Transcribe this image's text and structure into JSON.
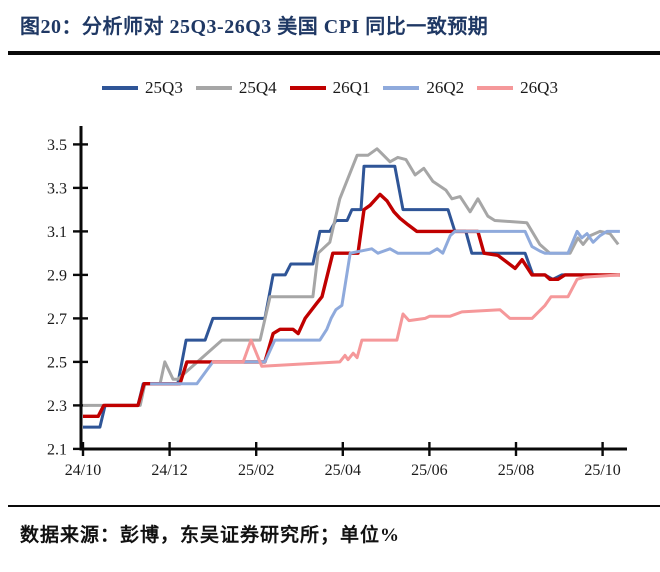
{
  "title": "图20：分析师对 25Q3-26Q3 美国 CPI 同比一致预期",
  "source_note": "数据来源：彭博，东吴证券研究所；单位%",
  "colors": {
    "title_navy": "#1f3864",
    "rule_black": "#0a0a0a",
    "series_25Q3": "#2f5597",
    "series_25Q4": "#a6a6a6",
    "series_26Q1": "#c00000",
    "series_26Q2": "#8faadc",
    "series_26Q3": "#f5989a"
  },
  "chart_data": {
    "type": "line",
    "title": "分析师对 25Q3-26Q3 美国 CPI 同比一致预期",
    "unit": "%",
    "grid": false,
    "legend_position": "top",
    "x_axis": {
      "description": "months, weekly consensus forecast snapshots from 2024/10 to 2025/10+",
      "tick_labels": [
        "24/10",
        "24/12",
        "25/02",
        "25/04",
        "25/06",
        "25/08",
        "25/10"
      ],
      "tick_positions_months": [
        0,
        2,
        4,
        6,
        8,
        10,
        12
      ],
      "range_months": [
        0,
        12.55
      ]
    },
    "y_axis": {
      "ticks": [
        2.1,
        2.3,
        2.5,
        2.7,
        2.9,
        3.1,
        3.3,
        3.5
      ],
      "range": [
        2.1,
        3.58
      ],
      "unit": "%"
    },
    "series": [
      {
        "name": "25Q3",
        "color": "#2f5597",
        "width": 3,
        "points": [
          [
            0,
            2.2
          ],
          [
            0.39,
            2.2
          ],
          [
            0.51,
            2.3
          ],
          [
            1.27,
            2.3
          ],
          [
            1.39,
            2.4
          ],
          [
            2.19,
            2.4
          ],
          [
            2.38,
            2.6
          ],
          [
            2.82,
            2.6
          ],
          [
            3.0,
            2.7
          ],
          [
            4.2,
            2.7
          ],
          [
            4.39,
            2.9
          ],
          [
            4.67,
            2.9
          ],
          [
            4.8,
            2.95
          ],
          [
            5.31,
            2.95
          ],
          [
            5.47,
            3.1
          ],
          [
            5.7,
            3.1
          ],
          [
            5.84,
            3.15
          ],
          [
            6.1,
            3.15
          ],
          [
            6.21,
            3.2
          ],
          [
            6.42,
            3.2
          ],
          [
            6.49,
            3.4
          ],
          [
            7.2,
            3.4
          ],
          [
            7.39,
            3.2
          ],
          [
            8.43,
            3.2
          ],
          [
            8.59,
            3.1
          ],
          [
            8.84,
            3.1
          ],
          [
            8.98,
            3.0
          ],
          [
            10.21,
            3.0
          ],
          [
            10.39,
            2.9
          ],
          [
            10.67,
            2.9
          ],
          [
            10.85,
            2.88
          ],
          [
            11.06,
            2.9
          ],
          [
            11.89,
            2.9
          ]
        ]
      },
      {
        "name": "25Q4",
        "color": "#a6a6a6",
        "width": 3,
        "points": [
          [
            0,
            2.3
          ],
          [
            1.32,
            2.3
          ],
          [
            1.43,
            2.4
          ],
          [
            1.78,
            2.4
          ],
          [
            1.89,
            2.5
          ],
          [
            2.08,
            2.42
          ],
          [
            2.19,
            2.42
          ],
          [
            3.21,
            2.6
          ],
          [
            4.09,
            2.6
          ],
          [
            4.32,
            2.8
          ],
          [
            5.31,
            2.8
          ],
          [
            5.43,
            3.0
          ],
          [
            5.7,
            3.05
          ],
          [
            5.93,
            3.25
          ],
          [
            6.33,
            3.45
          ],
          [
            6.58,
            3.45
          ],
          [
            6.79,
            3.48
          ],
          [
            7.09,
            3.42
          ],
          [
            7.27,
            3.44
          ],
          [
            7.46,
            3.43
          ],
          [
            7.67,
            3.36
          ],
          [
            7.87,
            3.39
          ],
          [
            8.08,
            3.33
          ],
          [
            8.38,
            3.29
          ],
          [
            8.52,
            3.25
          ],
          [
            8.71,
            3.26
          ],
          [
            8.94,
            3.19
          ],
          [
            9.12,
            3.25
          ],
          [
            9.35,
            3.17
          ],
          [
            9.51,
            3.15
          ],
          [
            10.25,
            3.14
          ],
          [
            10.55,
            3.04
          ],
          [
            10.78,
            3.0
          ],
          [
            11.25,
            3.0
          ],
          [
            11.43,
            3.07
          ],
          [
            11.55,
            3.04
          ],
          [
            11.71,
            3.08
          ],
          [
            11.94,
            3.1
          ],
          [
            12.17,
            3.09
          ],
          [
            12.36,
            3.04
          ]
        ]
      },
      {
        "name": "26Q1",
        "color": "#c00000",
        "width": 3.4,
        "points": [
          [
            0,
            2.25
          ],
          [
            0.35,
            2.25
          ],
          [
            0.48,
            2.3
          ],
          [
            1.27,
            2.3
          ],
          [
            1.41,
            2.4
          ],
          [
            2.24,
            2.4
          ],
          [
            2.4,
            2.5
          ],
          [
            4.2,
            2.5
          ],
          [
            4.39,
            2.63
          ],
          [
            4.55,
            2.65
          ],
          [
            4.85,
            2.65
          ],
          [
            4.97,
            2.63
          ],
          [
            5.13,
            2.7
          ],
          [
            5.4,
            2.77
          ],
          [
            5.52,
            2.8
          ],
          [
            5.77,
            3.0
          ],
          [
            6.35,
            3.0
          ],
          [
            6.49,
            3.2
          ],
          [
            6.63,
            3.22
          ],
          [
            6.86,
            3.27
          ],
          [
            7.02,
            3.24
          ],
          [
            7.18,
            3.19
          ],
          [
            7.32,
            3.16
          ],
          [
            7.51,
            3.13
          ],
          [
            7.71,
            3.1
          ],
          [
            9.12,
            3.1
          ],
          [
            9.26,
            3.0
          ],
          [
            9.58,
            2.99
          ],
          [
            9.98,
            2.93
          ],
          [
            10.14,
            2.97
          ],
          [
            10.37,
            2.9
          ],
          [
            10.67,
            2.9
          ],
          [
            10.78,
            2.88
          ],
          [
            10.97,
            2.88
          ],
          [
            11.13,
            2.9
          ],
          [
            12.4,
            2.9
          ]
        ]
      },
      {
        "name": "26Q2",
        "color": "#8faadc",
        "width": 3,
        "points": [
          [
            1.55,
            2.4
          ],
          [
            2.63,
            2.4
          ],
          [
            3.0,
            2.5
          ],
          [
            4.2,
            2.5
          ],
          [
            4.43,
            2.6
          ],
          [
            5.47,
            2.6
          ],
          [
            5.63,
            2.65
          ],
          [
            5.73,
            2.7
          ],
          [
            5.84,
            2.74
          ],
          [
            5.98,
            2.76
          ],
          [
            6.17,
            3.0
          ],
          [
            6.67,
            3.02
          ],
          [
            6.81,
            3.0
          ],
          [
            7.09,
            3.02
          ],
          [
            7.27,
            3.0
          ],
          [
            8.01,
            3.0
          ],
          [
            8.18,
            3.02
          ],
          [
            8.31,
            3.0
          ],
          [
            8.48,
            3.08
          ],
          [
            8.59,
            3.1
          ],
          [
            10.21,
            3.1
          ],
          [
            10.37,
            3.03
          ],
          [
            10.55,
            3.01
          ],
          [
            10.67,
            3.0
          ],
          [
            11.2,
            3.0
          ],
          [
            11.41,
            3.1
          ],
          [
            11.52,
            3.07
          ],
          [
            11.64,
            3.09
          ],
          [
            11.78,
            3.05
          ],
          [
            11.94,
            3.08
          ],
          [
            12.1,
            3.1
          ],
          [
            12.4,
            3.1
          ]
        ]
      },
      {
        "name": "26Q3",
        "color": "#f5989a",
        "width": 3,
        "points": [
          [
            2.98,
            2.5
          ],
          [
            3.7,
            2.5
          ],
          [
            3.88,
            2.6
          ],
          [
            4.13,
            2.48
          ],
          [
            5.93,
            2.5
          ],
          [
            6.05,
            2.53
          ],
          [
            6.12,
            2.51
          ],
          [
            6.24,
            2.54
          ],
          [
            6.33,
            2.52
          ],
          [
            6.44,
            2.6
          ],
          [
            7.25,
            2.6
          ],
          [
            7.39,
            2.72
          ],
          [
            7.53,
            2.69
          ],
          [
            7.9,
            2.7
          ],
          [
            8.01,
            2.71
          ],
          [
            8.48,
            2.71
          ],
          [
            8.75,
            2.73
          ],
          [
            9.63,
            2.74
          ],
          [
            9.86,
            2.7
          ],
          [
            10.37,
            2.7
          ],
          [
            10.67,
            2.76
          ],
          [
            10.81,
            2.8
          ],
          [
            11.2,
            2.8
          ],
          [
            11.41,
            2.88
          ],
          [
            11.59,
            2.89
          ],
          [
            12.4,
            2.9
          ]
        ]
      }
    ]
  }
}
